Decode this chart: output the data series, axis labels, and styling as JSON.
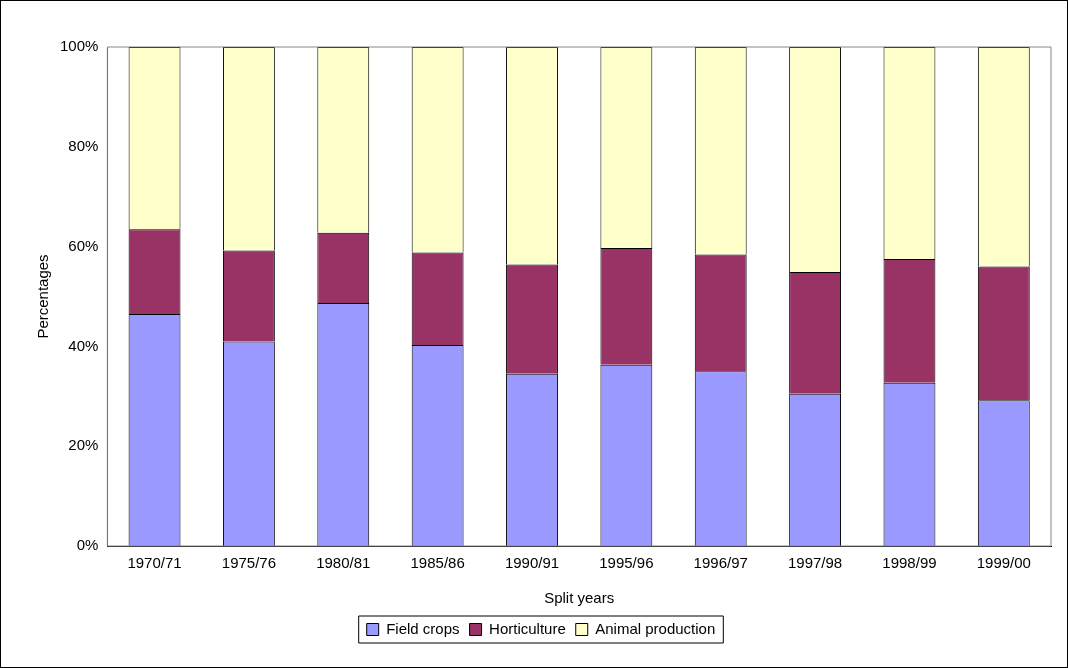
{
  "chart_data": {
    "type": "bar",
    "stacked": true,
    "xlabel": "Split years",
    "ylabel": "Percentages",
    "categories": [
      "1970/71",
      "1975/76",
      "1980/81",
      "1985/86",
      "1990/91",
      "1995/96",
      "1996/97",
      "1997/98",
      "1998/99",
      "1999/00"
    ],
    "series": [
      {
        "name": "Field crops",
        "color": "#9999ff",
        "values": [
          46.5,
          41,
          48.7,
          40.3,
          34.5,
          36.3,
          35,
          30.5,
          32.7,
          29.2
        ]
      },
      {
        "name": "Horticulture",
        "color": "#993366",
        "values": [
          17,
          18.2,
          14.1,
          18.5,
          21.9,
          23.4,
          23.4,
          24.4,
          24.8,
          26.8
        ]
      },
      {
        "name": "Animal production",
        "color": "#ffffcc",
        "values": [
          36.5,
          40.8,
          37.2,
          41.2,
          43.6,
          40.3,
          41.6,
          45.1,
          42.5,
          44
        ]
      }
    ],
    "ylim": [
      0,
      100
    ],
    "yticks": [
      {
        "value": 0,
        "label": "0%"
      },
      {
        "value": 20,
        "label": "20%"
      },
      {
        "value": 40,
        "label": "40%"
      },
      {
        "value": 60,
        "label": "60%"
      },
      {
        "value": 80,
        "label": "80%"
      },
      {
        "value": 100,
        "label": "100%"
      }
    ],
    "grid": false,
    "legend": "bottom"
  }
}
